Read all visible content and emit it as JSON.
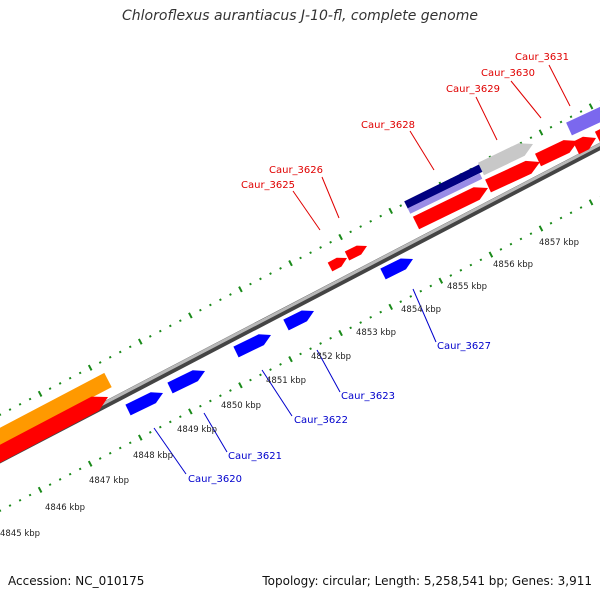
{
  "title": "Chloroflexus aurantiacus J-10-fl, complete genome",
  "footer": {
    "accession": "Accession: NC_010175",
    "summary": "Topology: circular; Length: 5,258,541 bp; Genes: 3,911"
  },
  "colors": {
    "forward_gene": "#ff0000",
    "reverse_gene": "#0000ff",
    "orange_feature": "#ff9900",
    "gray_feature": "#c8c8c8",
    "navy_feature": "#000080",
    "purple_feature": "#7b68ee",
    "light_purple_feature": "#9a8ce6",
    "tick": "#1a8a1a",
    "forward_label": "#e00000",
    "reverse_label": "#0000cc",
    "backbone": "#888888"
  },
  "kbp_labels": [
    "4845 kbp",
    "4846 kbp",
    "4847 kbp",
    "4848 kbp",
    "4849 kbp",
    "4850 kbp",
    "4851 kbp",
    "4852 kbp",
    "4853 kbp",
    "4854 kbp",
    "4855 kbp",
    "4856 kbp",
    "4857 kbp"
  ],
  "forward_labels": [
    "Caur_3625",
    "Caur_3626",
    "Caur_3628",
    "Caur_3629",
    "Caur_3630",
    "Caur_3631"
  ],
  "reverse_labels": [
    "Caur_3620",
    "Caur_3621",
    "Caur_3622",
    "Caur_3623",
    "Caur_3627"
  ]
}
